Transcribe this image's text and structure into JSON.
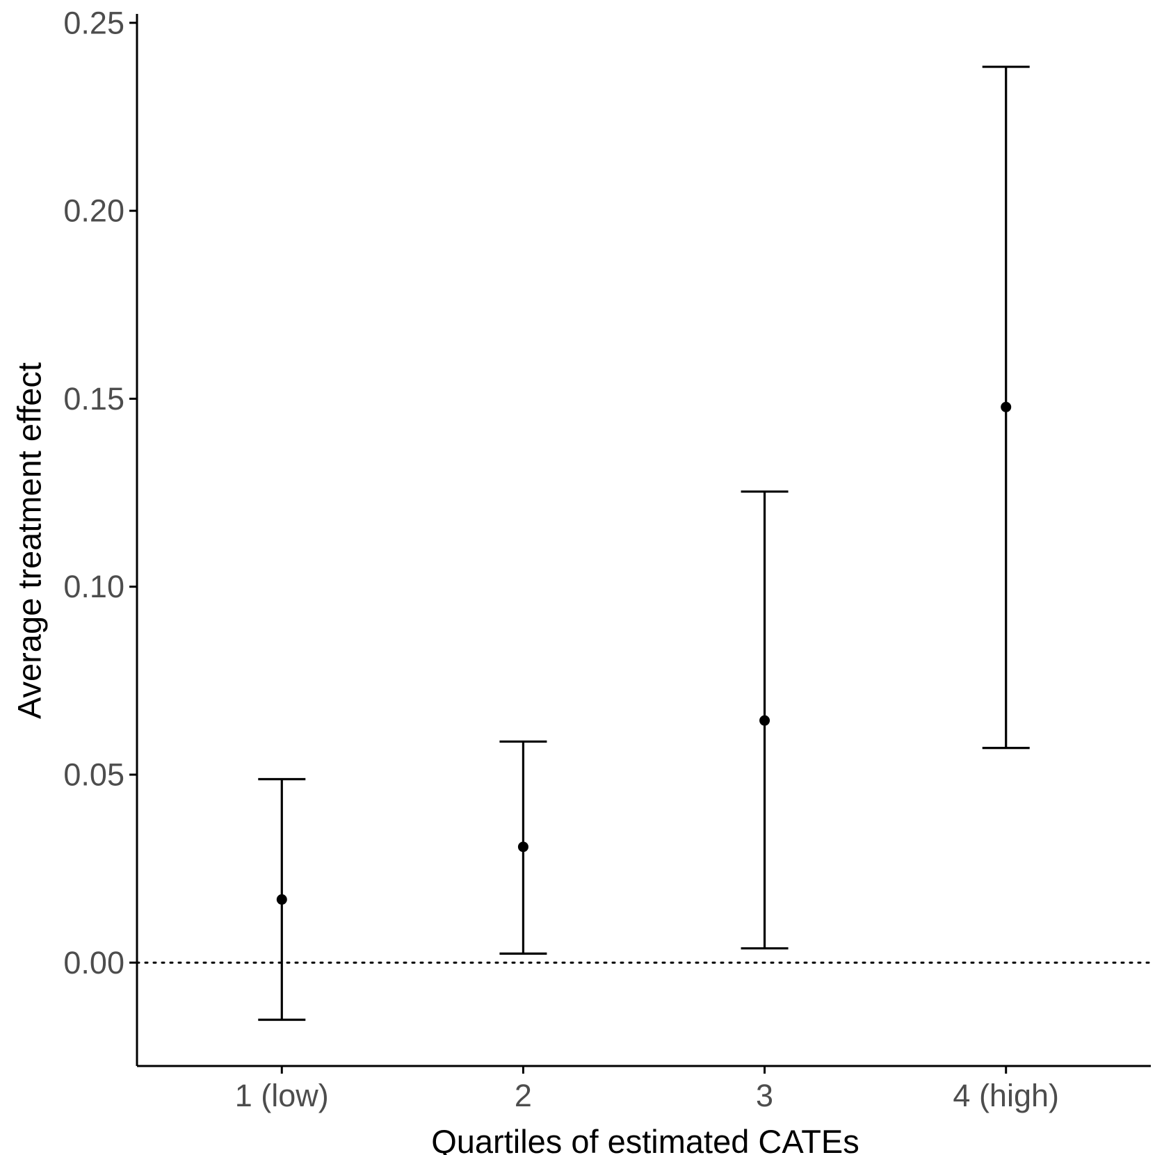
{
  "chart_data": {
    "type": "errorbar",
    "title": "",
    "xlabel": "Quartiles of estimated CATEs",
    "ylabel": "Average treatment effect",
    "categories": [
      "1 (low)",
      "2",
      "3",
      "4 (high)"
    ],
    "estimates": [
      0.0168,
      0.0308,
      0.0644,
      0.1478
    ],
    "lower": [
      -0.0152,
      0.0024,
      0.0038,
      0.0571
    ],
    "upper": [
      0.0488,
      0.0588,
      0.1253,
      0.2383
    ],
    "ylim": [
      -0.0275,
      0.252
    ],
    "yticks": [
      0.0,
      0.05,
      0.1,
      0.15,
      0.2,
      0.25
    ],
    "ytick_labels": [
      "0.00",
      "0.05",
      "0.10",
      "0.15",
      "0.20",
      "0.25"
    ],
    "reference_line": {
      "y": 0.0,
      "style": "dotted"
    },
    "colors": {
      "marks": "#000000",
      "axis": "#000000",
      "tick_text": "#4d4d4d",
      "background": "#ffffff"
    }
  }
}
